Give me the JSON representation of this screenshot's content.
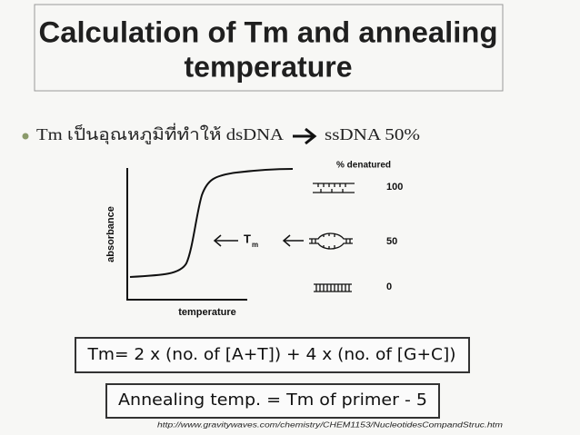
{
  "slide": {
    "title_lines": [
      "Calculation of Tm and annealing",
      "temperature"
    ],
    "bullet": {
      "left": "Tm เป็นอุณหภูมิที่ทำให้ dsDNA",
      "right": "ssDNA 50%"
    },
    "figure": {
      "y_axis_label": "absorbance",
      "x_axis_label": "temperature",
      "tm_label": {
        "main": "T",
        "sub": "m"
      },
      "legend_title": "% denatured",
      "levels": [
        "100",
        "50",
        "0"
      ]
    },
    "formula": "Tm= 2 x (no. of [A+T]) + 4 x (no. of [G+C])",
    "annealing": "Annealing temp. = Tm of primer - 5",
    "source_url": "http://www.gravitywaves.com/chemistry/CHEM1153/NucleotidesCompandStruc.htm"
  }
}
